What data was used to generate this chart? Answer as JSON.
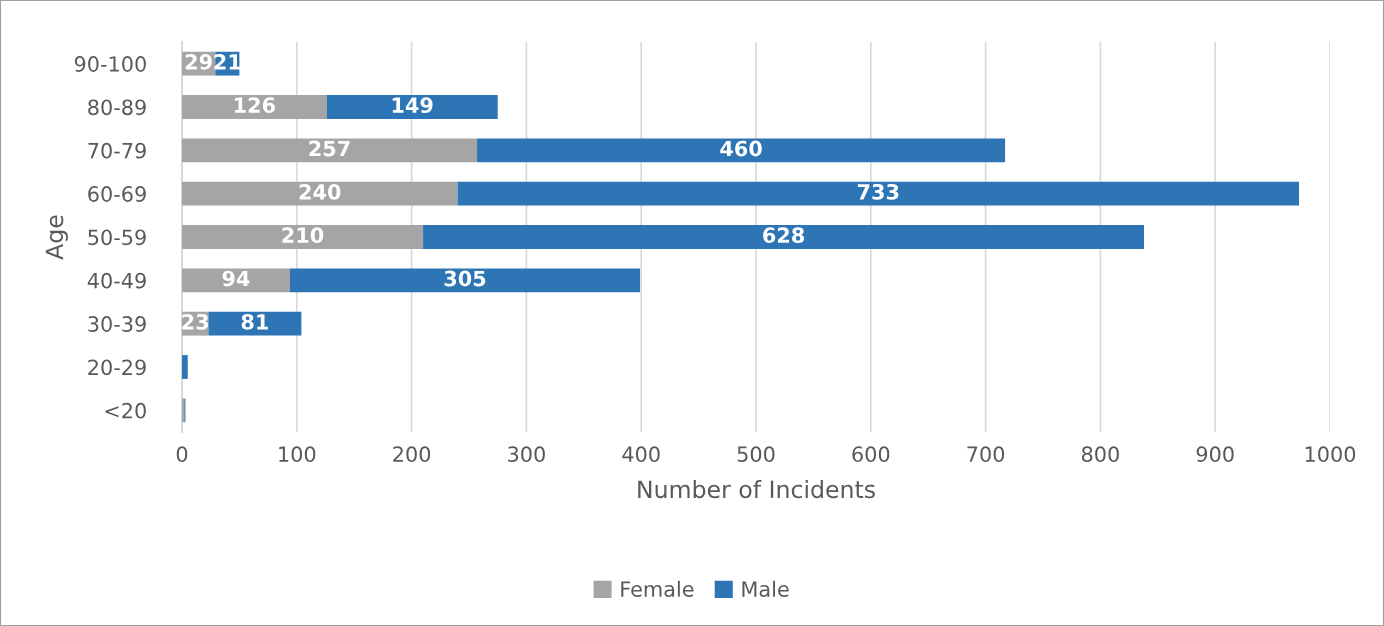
{
  "chart_data": {
    "type": "bar",
    "orientation": "horizontal",
    "stacked": true,
    "xlabel": "Number of Incidents",
    "ylabel": "Age",
    "categories": [
      "90-100",
      "80-89",
      "70-79",
      "60-69",
      "50-59",
      "40-49",
      "30-39",
      "20-29",
      "<20"
    ],
    "series": [
      {
        "name": "Female",
        "color": "#a5a5a5",
        "values": [
          29,
          126,
          257,
          240,
          210,
          94,
          23,
          null,
          2
        ],
        "value_labels": [
          "29",
          "126",
          "257",
          "240",
          "210",
          "94",
          "23",
          null,
          null
        ]
      },
      {
        "name": "Male",
        "color": "#2e75b6",
        "values": [
          21,
          149,
          460,
          733,
          628,
          305,
          81,
          5,
          1
        ],
        "value_labels": [
          "21",
          "149",
          "460",
          "733",
          "628",
          "305",
          "81",
          null,
          null
        ]
      }
    ],
    "xlim": [
      0,
      1000
    ],
    "xticks": [
      0,
      100,
      200,
      300,
      400,
      500,
      600,
      700,
      800,
      900,
      1000
    ],
    "grid": "x",
    "legend": "bottom"
  }
}
